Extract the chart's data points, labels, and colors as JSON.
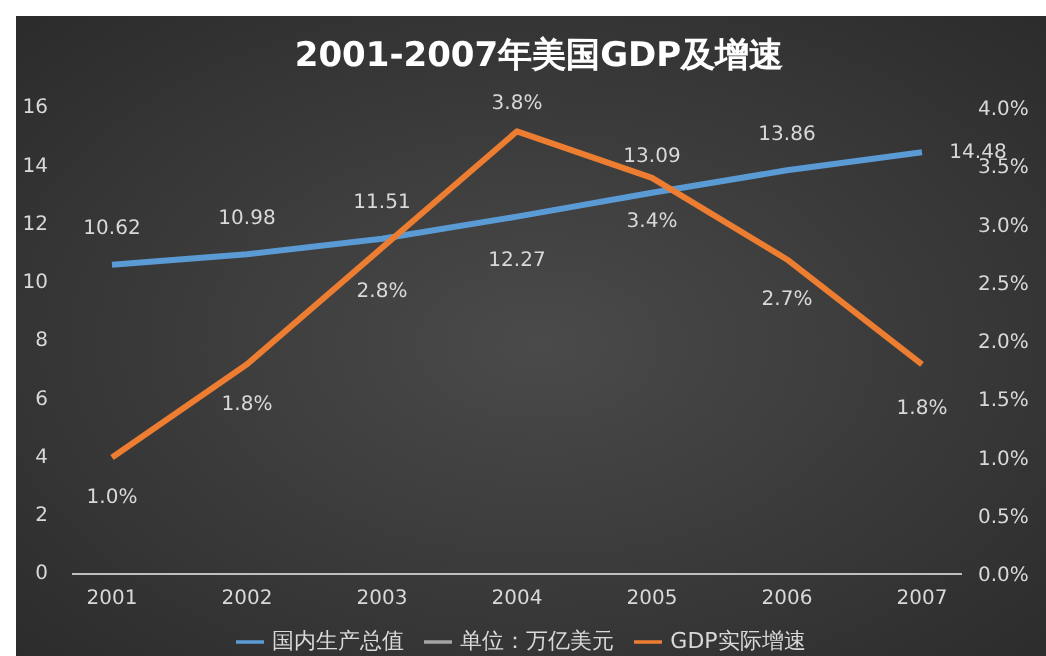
{
  "chart_data": {
    "type": "line",
    "title": "2001-2007年美国GDP及增速",
    "categories": [
      "2001",
      "2002",
      "2003",
      "2004",
      "2005",
      "2006",
      "2007"
    ],
    "series": [
      {
        "name": "国内生产总值",
        "color": "#5b9bd5",
        "values": [
          10.62,
          10.98,
          11.51,
          12.27,
          13.09,
          13.86,
          14.48
        ],
        "value_labels": [
          "10.62",
          "10.98",
          "11.51",
          "12.27",
          "13.09",
          "13.86",
          "14.48"
        ]
      },
      {
        "name": "单位：万亿美元",
        "color": "#a5a5a5",
        "values": [
          null,
          null,
          null,
          null,
          null,
          null,
          null
        ]
      },
      {
        "name": "GDP实际增速",
        "color": "#ed7d31",
        "axis": "y2",
        "values": [
          1.0,
          1.8,
          2.8,
          3.8,
          3.4,
          2.7,
          1.8
        ],
        "value_labels": [
          "1.0%",
          "1.8%",
          "2.8%",
          "3.8%",
          "3.4%",
          "2.7%",
          "1.8%"
        ]
      }
    ],
    "ylim": [
      0,
      16
    ],
    "yticks": [
      0,
      2,
      4,
      6,
      8,
      10,
      12,
      14,
      16
    ],
    "y2lim": [
      0,
      4
    ],
    "y2ticks": [
      {
        "value": 0,
        "label": "0.0%"
      },
      {
        "value": 0.5,
        "label": "0.5%"
      },
      {
        "value": 1,
        "label": "1.0%"
      },
      {
        "value": 1.5,
        "label": "1.5%"
      },
      {
        "value": 2,
        "label": "2.0%"
      },
      {
        "value": 2.5,
        "label": "2.5%"
      },
      {
        "value": 3,
        "label": "3.0%"
      },
      {
        "value": 3.5,
        "label": "3.5%"
      },
      {
        "value": 4,
        "label": "4.0%"
      }
    ],
    "grid": false,
    "legend": "bottom",
    "marker": "none",
    "line_style": "solid"
  }
}
